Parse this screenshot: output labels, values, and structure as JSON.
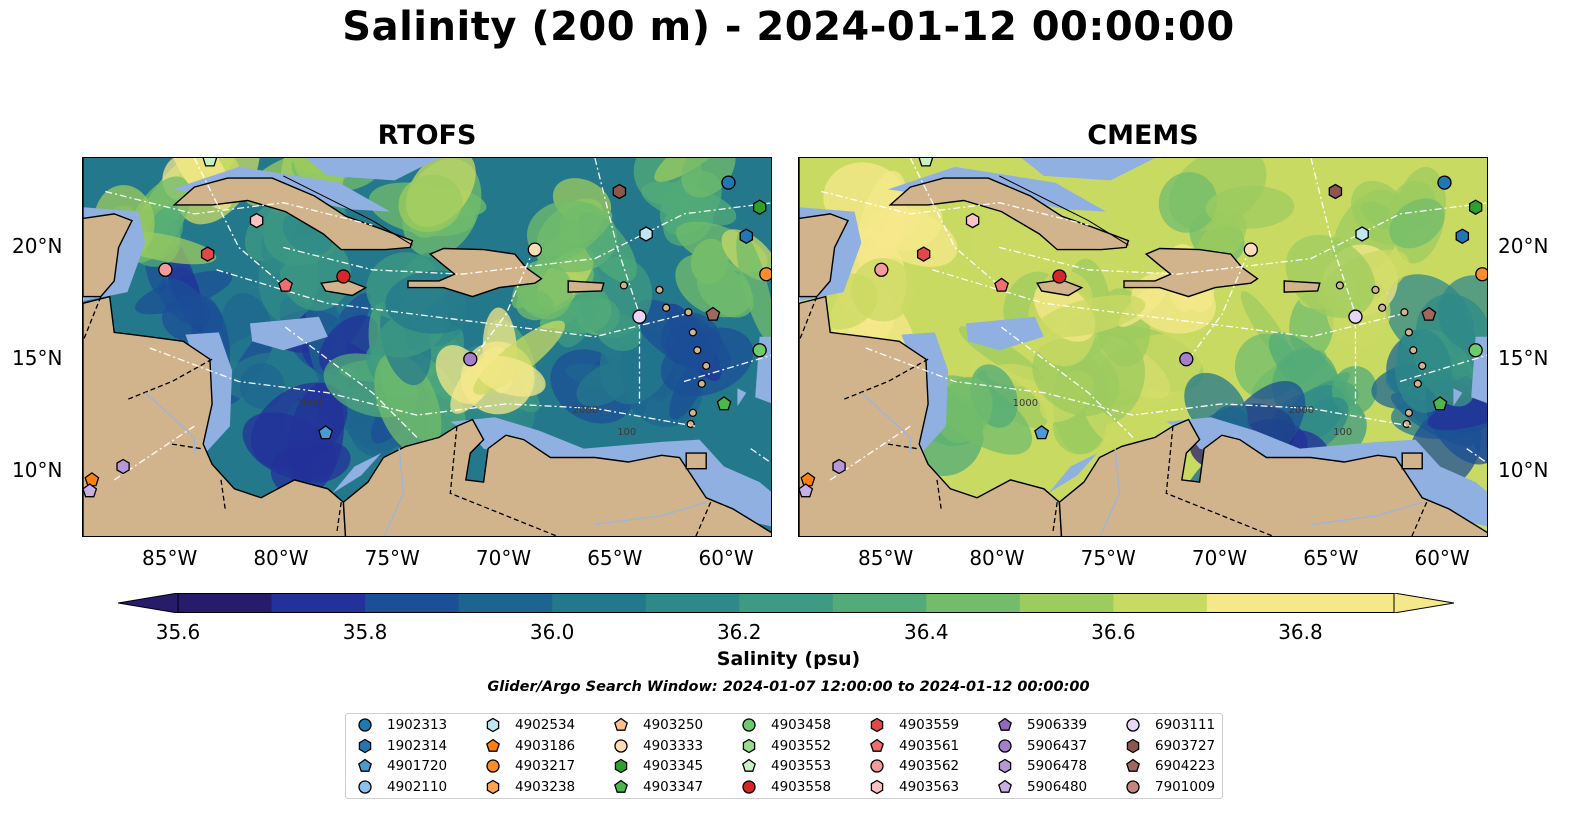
{
  "title": "Salinity (200 m) - 2024-01-12 00:00:00",
  "panels": [
    {
      "title": "RTOFS"
    },
    {
      "title": "CMEMS"
    }
  ],
  "map": {
    "lon_range": [
      -89,
      -58
    ],
    "lat_range": [
      7,
      24
    ],
    "lon_ticks": [
      "85°W",
      "80°W",
      "75°W",
      "70°W",
      "65°W",
      "60°W"
    ],
    "lat_ticks": [
      "20°N",
      "15°N",
      "10°N"
    ],
    "contour_labels": [
      "1000",
      "100",
      "2000"
    ],
    "colors": {
      "land": "#d2b48c",
      "shelf": "#8fb0e0",
      "ocean_deep": "#2a1a6e"
    }
  },
  "colorbar": {
    "label": "Salinity (psu)",
    "ticks": [
      "35.6",
      "35.8",
      "36.0",
      "36.2",
      "36.4",
      "36.6",
      "36.8"
    ],
    "range": [
      35.6,
      36.9
    ],
    "colors": [
      "#271b6b",
      "#23319a",
      "#1b4f96",
      "#1d6590",
      "#24788c",
      "#2f8988",
      "#3e9a82",
      "#52ab78",
      "#72bc6b",
      "#9ccb5f",
      "#c9da63",
      "#f5e88b"
    ]
  },
  "search_window": "Glider/Argo Search Window: 2024-01-07 12:00:00 to 2024-01-12 00:00:00",
  "legend": [
    {
      "id": "1902313",
      "color": "#1f77b4",
      "shape": "circle"
    },
    {
      "id": "1902314",
      "color": "#1f77b4",
      "shape": "hexagon"
    },
    {
      "id": "4901720",
      "color": "#4a9ad6",
      "shape": "pentagon"
    },
    {
      "id": "4902110",
      "color": "#8fc0ea",
      "shape": "circle"
    },
    {
      "id": "4902534",
      "color": "#bfe6f5",
      "shape": "hexagon"
    },
    {
      "id": "4903186",
      "color": "#ff7f0e",
      "shape": "pentagon"
    },
    {
      "id": "4903217",
      "color": "#ff8c2a",
      "shape": "circle"
    },
    {
      "id": "4903238",
      "color": "#ffa450",
      "shape": "hexagon"
    },
    {
      "id": "4903250",
      "color": "#ffc08a",
      "shape": "pentagon"
    },
    {
      "id": "4903333",
      "color": "#ffdcb8",
      "shape": "circle"
    },
    {
      "id": "4903345",
      "color": "#2ca02c",
      "shape": "hexagon"
    },
    {
      "id": "4903347",
      "color": "#4cb84c",
      "shape": "pentagon"
    },
    {
      "id": "4903458",
      "color": "#6ccc6c",
      "shape": "circle"
    },
    {
      "id": "4903552",
      "color": "#98df8a",
      "shape": "hexagon"
    },
    {
      "id": "4903553",
      "color": "#c8f2c0",
      "shape": "pentagon"
    },
    {
      "id": "4903558",
      "color": "#d62728",
      "shape": "circle"
    },
    {
      "id": "4903559",
      "color": "#e0484a",
      "shape": "hexagon"
    },
    {
      "id": "4903561",
      "color": "#ef6f70",
      "shape": "pentagon"
    },
    {
      "id": "4903562",
      "color": "#f49a9a",
      "shape": "circle"
    },
    {
      "id": "4903563",
      "color": "#fac2c2",
      "shape": "hexagon"
    },
    {
      "id": "5906339",
      "color": "#9467bd",
      "shape": "pentagon"
    },
    {
      "id": "5906437",
      "color": "#a57fcb",
      "shape": "circle"
    },
    {
      "id": "5906478",
      "color": "#b797d8",
      "shape": "hexagon"
    },
    {
      "id": "5906480",
      "color": "#c8b0e6",
      "shape": "pentagon"
    },
    {
      "id": "6903111",
      "color": "#e7d6f5",
      "shape": "circle"
    },
    {
      "id": "6903727",
      "color": "#8c564b",
      "shape": "hexagon"
    },
    {
      "id": "6904223",
      "color": "#a0685c",
      "shape": "pentagon"
    },
    {
      "id": "7901009",
      "color": "#c4877b",
      "shape": "circle"
    }
  ],
  "markers": [
    {
      "id": "1902313",
      "lon": -60.0,
      "lat": 22.9
    },
    {
      "id": "1902314",
      "lon": -59.2,
      "lat": 20.5
    },
    {
      "id": "4903217",
      "lon": -58.3,
      "lat": 18.8
    },
    {
      "id": "4903345",
      "lon": -58.6,
      "lat": 21.8
    },
    {
      "id": "4903458",
      "lon": -58.6,
      "lat": 15.4
    },
    {
      "id": "4903347",
      "lon": -60.2,
      "lat": 13.0
    },
    {
      "id": "6904223",
      "lon": -60.7,
      "lat": 17.0
    },
    {
      "id": "6903727",
      "lon": -64.9,
      "lat": 22.5
    },
    {
      "id": "4902534",
      "lon": -63.7,
      "lat": 20.6
    },
    {
      "id": "6903111",
      "lon": -64.0,
      "lat": 16.9
    },
    {
      "id": "5906437",
      "lon": -71.6,
      "lat": 15.0
    },
    {
      "id": "4903333",
      "lon": -68.7,
      "lat": 19.9
    },
    {
      "id": "4903558",
      "lon": -77.3,
      "lat": 18.7
    },
    {
      "id": "4903561",
      "lon": -79.9,
      "lat": 18.3
    },
    {
      "id": "4903559",
      "lon": -83.4,
      "lat": 19.7
    },
    {
      "id": "4903562",
      "lon": -85.3,
      "lat": 19.0
    },
    {
      "id": "4903563",
      "lon": -81.2,
      "lat": 21.2
    },
    {
      "id": "4903553",
      "lon": -83.3,
      "lat": 23.9
    },
    {
      "id": "4901720",
      "lon": -78.1,
      "lat": 11.7
    },
    {
      "id": "4903186",
      "lon": -88.6,
      "lat": 9.6
    },
    {
      "id": "5906478",
      "lon": -87.2,
      "lat": 10.2
    },
    {
      "id": "5906480",
      "lon": -88.7,
      "lat": 9.1
    }
  ]
}
